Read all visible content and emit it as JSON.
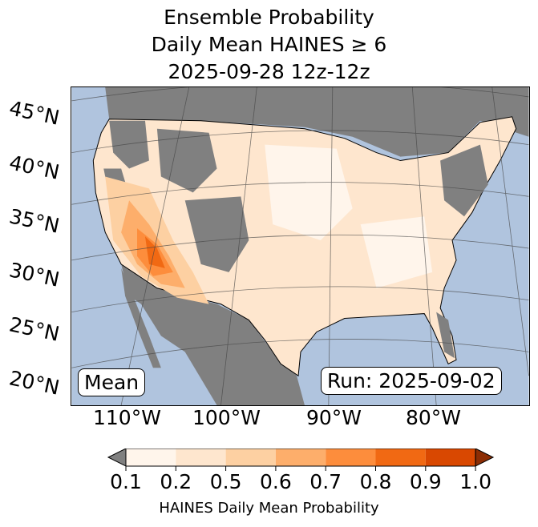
{
  "title": {
    "line1": "Ensemble Probability",
    "line2": "Daily Mean HAINES ≥ 6",
    "line3": "2025-09-28 12z-12z"
  },
  "map": {
    "lat_labels": [
      "45°N",
      "40°N",
      "35°N",
      "30°N",
      "25°N",
      "20°N"
    ],
    "lon_labels": [
      "110°W",
      "100°W",
      "90°W",
      "80°W"
    ],
    "stat_label": "Mean",
    "run_label": "Run: 2025-09-02",
    "colors": {
      "ocean": "#b0c4de",
      "missing_land": "#808080"
    }
  },
  "colorbar": {
    "label": "HAINES Daily Mean Probability",
    "ticks": [
      "0.1",
      "0.2",
      "0.5",
      "0.6",
      "0.7",
      "0.8",
      "0.9",
      "1.0"
    ],
    "colors": [
      "#fff5eb",
      "#fee6ce",
      "#fdd0a2",
      "#fdae6b",
      "#fd8d3c",
      "#f16913",
      "#d94801"
    ],
    "under_color": "#808080",
    "over_color": "#8c2d04"
  }
}
